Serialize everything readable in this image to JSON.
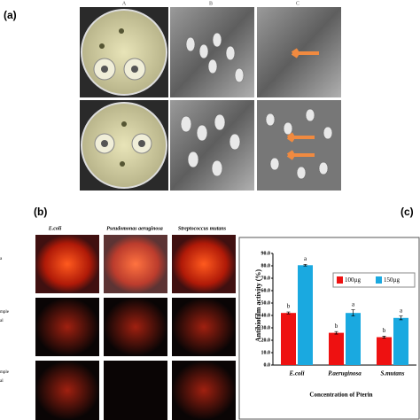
{
  "panel_a": {
    "label": "(a)",
    "columns": [
      "A",
      "B",
      "C"
    ]
  },
  "panel_b": {
    "label": "(b)",
    "columns": [
      "E.coli",
      "Pseudomonas aeruginosa",
      "Streptococcus mutans"
    ],
    "rows": [
      "a",
      "mple",
      "al",
      "mple",
      "al"
    ]
  },
  "panel_c_label": "(c)",
  "chart_data": {
    "type": "bar",
    "ylabel": "Antibiofilm activity (%)",
    "xlabel": "Concentration of Pterin",
    "categories": [
      "E.coli",
      "P.aeruginosa",
      "S.mutans"
    ],
    "series": [
      {
        "name": "100µg",
        "color": "#ee1111",
        "values": [
          42,
          26,
          22.5
        ],
        "errors": [
          0.8,
          1.0,
          0.8
        ],
        "letters": [
          "b",
          "b",
          "b"
        ]
      },
      {
        "name": "150µg",
        "color": "#1aa9e0",
        "values": [
          80.5,
          42,
          38
        ],
        "errors": [
          0.6,
          2.5,
          1.5
        ],
        "letters": [
          "a",
          "a",
          "a"
        ]
      }
    ],
    "ylim": [
      0,
      90
    ],
    "yticks": [
      {
        "value": 0,
        "label": "0.0"
      },
      {
        "value": 10,
        "label": "10.0"
      },
      {
        "value": 20,
        "label": "20.0"
      },
      {
        "value": 30,
        "label": "30.0"
      },
      {
        "value": 40,
        "label": "40.0"
      },
      {
        "value": 50,
        "label": "50.0"
      },
      {
        "value": 60,
        "label": "60.0"
      },
      {
        "value": 70,
        "label": "70.0"
      },
      {
        "value": 80,
        "label": "80.0"
      },
      {
        "value": 90,
        "label": "90.0"
      }
    ]
  }
}
